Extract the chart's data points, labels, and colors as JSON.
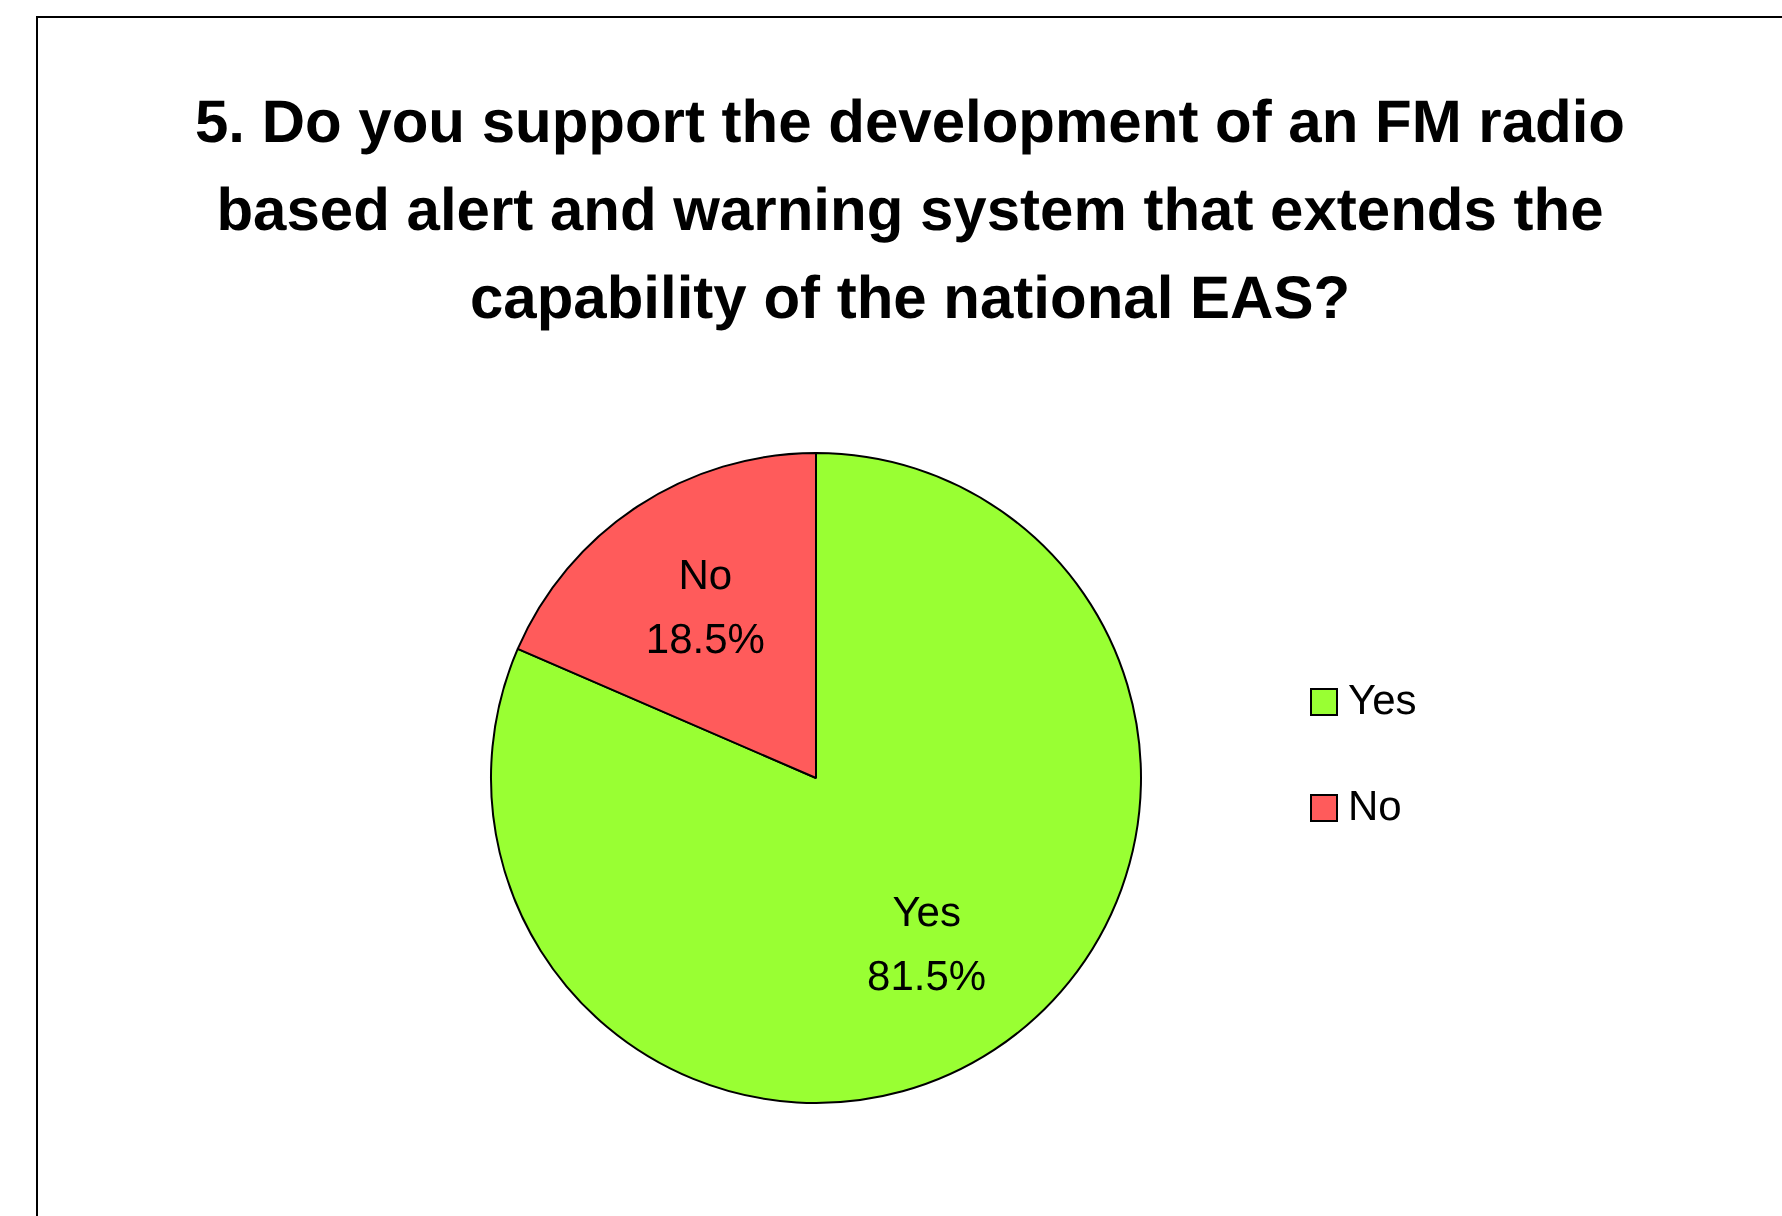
{
  "chart_data": {
    "type": "pie",
    "title": "5. Do you support the development of an FM radio based alert and warning system that extends the capability of the national EAS?",
    "categories": [
      "Yes",
      "No"
    ],
    "values": [
      81.5,
      18.5
    ],
    "colors": [
      "#99ff33",
      "#ff5b5b"
    ],
    "value_labels": [
      "81.5%",
      "18.5%"
    ],
    "legend": "right"
  }
}
